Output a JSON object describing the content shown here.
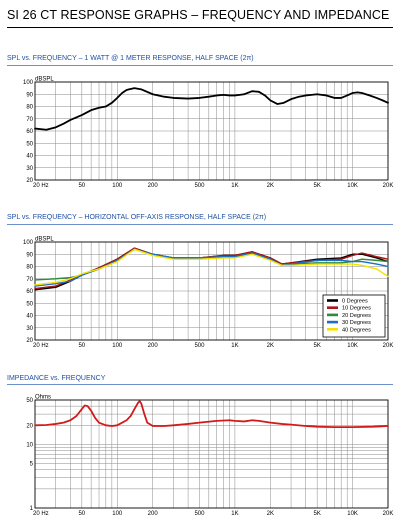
{
  "page": {
    "title": "SI 26 CT RESPONSE GRAPHS – FREQUENCY AND IMPEDANCE"
  },
  "colors": {
    "heading": "#1f4fa3",
    "heading_rule": "#6d8fc9",
    "grid": "#8a8a8a",
    "frame": "#000000"
  },
  "chart_data": [
    {
      "id": "spl_1w",
      "type": "line",
      "title": "SPL vs. FREQUENCY – 1 WATT @ 1 METER RESPONSE, HALF SPACE (2π)",
      "x_scale": "log",
      "xlim": [
        20,
        20000
      ],
      "x_ticks": [
        {
          "value": 20,
          "label": "20  Hz"
        },
        {
          "value": 50,
          "label": "50"
        },
        {
          "value": 100,
          "label": "100"
        },
        {
          "value": 200,
          "label": "200"
        },
        {
          "value": 500,
          "label": "500"
        },
        {
          "value": 1000,
          "label": "1K"
        },
        {
          "value": 2000,
          "label": "2K"
        },
        {
          "value": 5000,
          "label": "5K"
        },
        {
          "value": 10000,
          "label": "10K"
        },
        {
          "value": 20000,
          "label": "20K"
        }
      ],
      "ylabel": "dBSPL",
      "ylim": [
        20,
        100
      ],
      "y_ticks": [
        20,
        30,
        40,
        50,
        60,
        70,
        80,
        90,
        100
      ],
      "grid": true,
      "series": [
        {
          "color": "#000000",
          "points": [
            [
              20,
              62
            ],
            [
              25,
              61
            ],
            [
              30,
              63
            ],
            [
              35,
              66
            ],
            [
              40,
              69
            ],
            [
              50,
              73
            ],
            [
              60,
              77
            ],
            [
              70,
              79
            ],
            [
              80,
              80
            ],
            [
              90,
              83
            ],
            [
              100,
              87
            ],
            [
              110,
              91
            ],
            [
              120,
              93.5
            ],
            [
              140,
              95
            ],
            [
              160,
              94
            ],
            [
              200,
              90
            ],
            [
              250,
              88
            ],
            [
              300,
              87
            ],
            [
              400,
              86.5
            ],
            [
              500,
              87
            ],
            [
              600,
              88
            ],
            [
              700,
              89
            ],
            [
              800,
              89.5
            ],
            [
              900,
              89
            ],
            [
              1000,
              89
            ],
            [
              1200,
              90
            ],
            [
              1400,
              92.5
            ],
            [
              1600,
              92
            ],
            [
              1800,
              89
            ],
            [
              2000,
              85
            ],
            [
              2300,
              82
            ],
            [
              2600,
              83
            ],
            [
              3000,
              86
            ],
            [
              3500,
              88
            ],
            [
              4000,
              89
            ],
            [
              5000,
              90
            ],
            [
              6000,
              89
            ],
            [
              7000,
              87
            ],
            [
              8000,
              87
            ],
            [
              9000,
              89
            ],
            [
              10000,
              91
            ],
            [
              11000,
              91.5
            ],
            [
              12000,
              91
            ],
            [
              14000,
              89
            ],
            [
              16000,
              87
            ],
            [
              18000,
              85
            ],
            [
              20000,
              83
            ]
          ]
        }
      ]
    },
    {
      "id": "spl_offaxis",
      "type": "line",
      "title": "SPL vs. FREQUENCY – HORIZONTAL OFF-AXIS RESPONSE, HALF SPACE (2π)",
      "x_scale": "log",
      "xlim": [
        20,
        20000
      ],
      "x_ticks": [
        {
          "value": 20,
          "label": "20  Hz"
        },
        {
          "value": 50,
          "label": "50"
        },
        {
          "value": 100,
          "label": "100"
        },
        {
          "value": 200,
          "label": "200"
        },
        {
          "value": 500,
          "label": "500"
        },
        {
          "value": 1000,
          "label": "1K"
        },
        {
          "value": 2000,
          "label": "2K"
        },
        {
          "value": 5000,
          "label": "5K"
        },
        {
          "value": 10000,
          "label": "10K"
        },
        {
          "value": 20000,
          "label": "20K"
        }
      ],
      "ylabel": "dBSPL",
      "ylim": [
        20,
        100
      ],
      "y_ticks": [
        20,
        30,
        40,
        50,
        60,
        70,
        80,
        90,
        100
      ],
      "grid": true,
      "legend_position": "bottom-right",
      "series": [
        {
          "name": "0 Degrees",
          "color": "#000000",
          "points": [
            [
              20,
              61
            ],
            [
              30,
              63
            ],
            [
              40,
              68
            ],
            [
              50,
              73
            ],
            [
              70,
              79
            ],
            [
              100,
              86
            ],
            [
              140,
              95
            ],
            [
              200,
              90
            ],
            [
              300,
              87
            ],
            [
              500,
              87
            ],
            [
              800,
              89
            ],
            [
              1000,
              89
            ],
            [
              1400,
              92
            ],
            [
              2000,
              87
            ],
            [
              2500,
              82
            ],
            [
              3000,
              83
            ],
            [
              5000,
              86
            ],
            [
              8000,
              87
            ],
            [
              10000,
              90
            ],
            [
              12000,
              90
            ],
            [
              16000,
              87
            ],
            [
              20000,
              84
            ]
          ]
        },
        {
          "name": "10 Degrees",
          "color": "#b01313",
          "points": [
            [
              20,
              62
            ],
            [
              30,
              64
            ],
            [
              40,
              69
            ],
            [
              50,
              73
            ],
            [
              70,
              79
            ],
            [
              100,
              86
            ],
            [
              140,
              95
            ],
            [
              200,
              90
            ],
            [
              300,
              87
            ],
            [
              500,
              87
            ],
            [
              800,
              89
            ],
            [
              1000,
              89
            ],
            [
              1400,
              92
            ],
            [
              2000,
              87
            ],
            [
              2500,
              82
            ],
            [
              3000,
              83
            ],
            [
              5000,
              85
            ],
            [
              8000,
              86
            ],
            [
              10000,
              89
            ],
            [
              12000,
              91
            ],
            [
              16000,
              88
            ],
            [
              20000,
              86
            ]
          ]
        },
        {
          "name": "20 Degrees",
          "color": "#2e8b3a",
          "points": [
            [
              20,
              69
            ],
            [
              30,
              70
            ],
            [
              40,
              71
            ],
            [
              50,
              73
            ],
            [
              70,
              78
            ],
            [
              100,
              85
            ],
            [
              140,
              94
            ],
            [
              200,
              90
            ],
            [
              300,
              87
            ],
            [
              500,
              87
            ],
            [
              800,
              88
            ],
            [
              1000,
              88
            ],
            [
              1400,
              91
            ],
            [
              2000,
              86
            ],
            [
              2500,
              81
            ],
            [
              3000,
              82
            ],
            [
              5000,
              83
            ],
            [
              8000,
              83
            ],
            [
              10000,
              84
            ],
            [
              12000,
              86
            ],
            [
              16000,
              85
            ],
            [
              20000,
              84
            ]
          ]
        },
        {
          "name": "30 Degrees",
          "color": "#1c6fc7",
          "points": [
            [
              20,
              64
            ],
            [
              30,
              66
            ],
            [
              40,
              68
            ],
            [
              50,
              73
            ],
            [
              70,
              78
            ],
            [
              100,
              85
            ],
            [
              140,
              94
            ],
            [
              200,
              90
            ],
            [
              300,
              87
            ],
            [
              500,
              87
            ],
            [
              800,
              88
            ],
            [
              1000,
              88
            ],
            [
              1400,
              91
            ],
            [
              2000,
              86
            ],
            [
              2500,
              81
            ],
            [
              3000,
              82
            ],
            [
              5000,
              85
            ],
            [
              8000,
              85
            ],
            [
              10000,
              84
            ],
            [
              12000,
              84
            ],
            [
              16000,
              82
            ],
            [
              20000,
              80
            ]
          ]
        },
        {
          "name": "40 Degrees",
          "color": "#f2e200",
          "points": [
            [
              20,
              65
            ],
            [
              30,
              67
            ],
            [
              40,
              70
            ],
            [
              50,
              74
            ],
            [
              70,
              78
            ],
            [
              100,
              84
            ],
            [
              140,
              94
            ],
            [
              200,
              89
            ],
            [
              300,
              86
            ],
            [
              500,
              86
            ],
            [
              800,
              87
            ],
            [
              1000,
              87
            ],
            [
              1400,
              90
            ],
            [
              2000,
              85
            ],
            [
              2500,
              81
            ],
            [
              3000,
              81
            ],
            [
              5000,
              82
            ],
            [
              8000,
              82
            ],
            [
              10000,
              82
            ],
            [
              12000,
              81
            ],
            [
              16000,
              78
            ],
            [
              20000,
              72
            ]
          ]
        }
      ]
    },
    {
      "id": "impedance",
      "type": "line",
      "title": "IMPEDANCE vs. FREQUENCY",
      "x_scale": "log",
      "y_scale": "log",
      "xlim": [
        20,
        20000
      ],
      "x_ticks": [
        {
          "value": 20,
          "label": "20  Hz"
        },
        {
          "value": 50,
          "label": "50"
        },
        {
          "value": 100,
          "label": "100"
        },
        {
          "value": 200,
          "label": "200"
        },
        {
          "value": 500,
          "label": "500"
        },
        {
          "value": 1000,
          "label": "1K"
        },
        {
          "value": 2000,
          "label": "2K"
        },
        {
          "value": 5000,
          "label": "5K"
        },
        {
          "value": 10000,
          "label": "10K"
        },
        {
          "value": 20000,
          "label": "20K"
        }
      ],
      "ylabel": "Ohms",
      "ylim": [
        1,
        50
      ],
      "y_ticks": [
        1,
        5,
        10,
        20,
        50
      ],
      "grid": true,
      "series": [
        {
          "color": "#d11b1b",
          "points": [
            [
              20,
              20
            ],
            [
              25,
              20.2
            ],
            [
              30,
              21
            ],
            [
              35,
              22
            ],
            [
              40,
              24
            ],
            [
              45,
              28
            ],
            [
              50,
              36
            ],
            [
              53,
              41
            ],
            [
              56,
              40
            ],
            [
              60,
              34
            ],
            [
              65,
              26
            ],
            [
              70,
              22
            ],
            [
              80,
              20
            ],
            [
              90,
              19.5
            ],
            [
              100,
              20
            ],
            [
              110,
              22
            ],
            [
              120,
              24
            ],
            [
              130,
              28
            ],
            [
              140,
              36
            ],
            [
              150,
              45
            ],
            [
              155,
              48
            ],
            [
              160,
              44
            ],
            [
              170,
              30
            ],
            [
              180,
              22
            ],
            [
              200,
              19.5
            ],
            [
              250,
              19.5
            ],
            [
              300,
              20
            ],
            [
              400,
              21
            ],
            [
              500,
              22
            ],
            [
              700,
              23.5
            ],
            [
              900,
              24
            ],
            [
              1000,
              23.5
            ],
            [
              1200,
              23
            ],
            [
              1400,
              24
            ],
            [
              1600,
              23.5
            ],
            [
              2000,
              22
            ],
            [
              2500,
              21
            ],
            [
              3000,
              20.5
            ],
            [
              4000,
              19.5
            ],
            [
              5000,
              19
            ],
            [
              7000,
              18.7
            ],
            [
              10000,
              18.7
            ],
            [
              15000,
              19
            ],
            [
              20000,
              19.5
            ]
          ]
        }
      ]
    }
  ]
}
